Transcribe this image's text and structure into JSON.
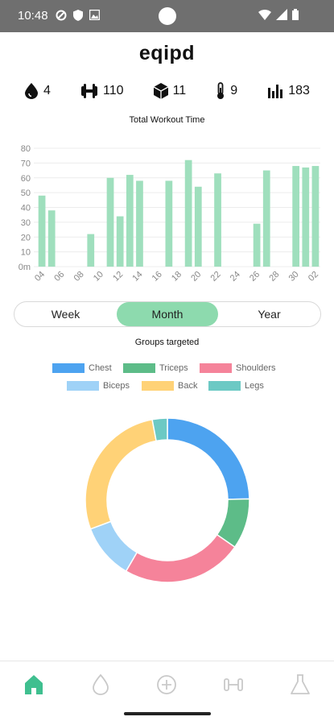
{
  "status_bar": {
    "time": "10:48"
  },
  "app": {
    "title": "eqipd"
  },
  "stats": [
    {
      "icon": "water-drop-icon",
      "value": "4"
    },
    {
      "icon": "dumbbell-icon",
      "value": "110"
    },
    {
      "icon": "cube-icon",
      "value": "11"
    },
    {
      "icon": "thermometer-icon",
      "value": "9"
    },
    {
      "icon": "bar-chart-icon",
      "value": "183"
    }
  ],
  "chart_data": [
    {
      "type": "bar",
      "title": "Total Workout Time",
      "ylabel": "",
      "xlabel": "",
      "ylim": [
        0,
        80
      ],
      "y_ticks": [
        "0m",
        "10",
        "20",
        "30",
        "40",
        "50",
        "60",
        "70",
        "80"
      ],
      "x_tick_labels": [
        "04",
        "06",
        "08",
        "10",
        "12",
        "14",
        "16",
        "18",
        "20",
        "22",
        "24",
        "26",
        "28",
        "30",
        "02"
      ],
      "categories": [
        "04",
        "05",
        "06",
        "07",
        "08",
        "09",
        "10",
        "11",
        "12",
        "13",
        "14",
        "15",
        "16",
        "17",
        "18",
        "19",
        "20",
        "21",
        "22",
        "23",
        "24",
        "25",
        "26",
        "27",
        "28",
        "29",
        "30",
        "01",
        "02"
      ],
      "values": [
        48,
        38,
        0,
        0,
        0,
        22,
        0,
        60,
        34,
        62,
        58,
        0,
        0,
        58,
        0,
        72,
        54,
        0,
        63,
        0,
        0,
        0,
        29,
        65,
        0,
        0,
        68,
        67,
        68
      ],
      "color": "#9fdfbd",
      "grid": true
    },
    {
      "type": "pie",
      "title": "Groups targeted",
      "labels": [
        "Chest",
        "Triceps",
        "Shoulders",
        "Biceps",
        "Back",
        "Legs"
      ],
      "values": [
        25,
        10,
        24,
        11,
        28,
        3
      ],
      "colors": [
        "#4da3f0",
        "#5dbc88",
        "#f5839a",
        "#9fd2f7",
        "#ffd277",
        "#6cc9c4"
      ]
    }
  ],
  "segment": {
    "options": [
      "Week",
      "Month",
      "Year"
    ],
    "selected": "Month",
    "active_color": "#8ddaae"
  },
  "nav": {
    "items": [
      "home-icon",
      "water-drop-icon",
      "recovery-icon",
      "dumbbell-icon",
      "flask-icon"
    ],
    "active": "home-icon",
    "active_color": "#3fbf8f"
  }
}
